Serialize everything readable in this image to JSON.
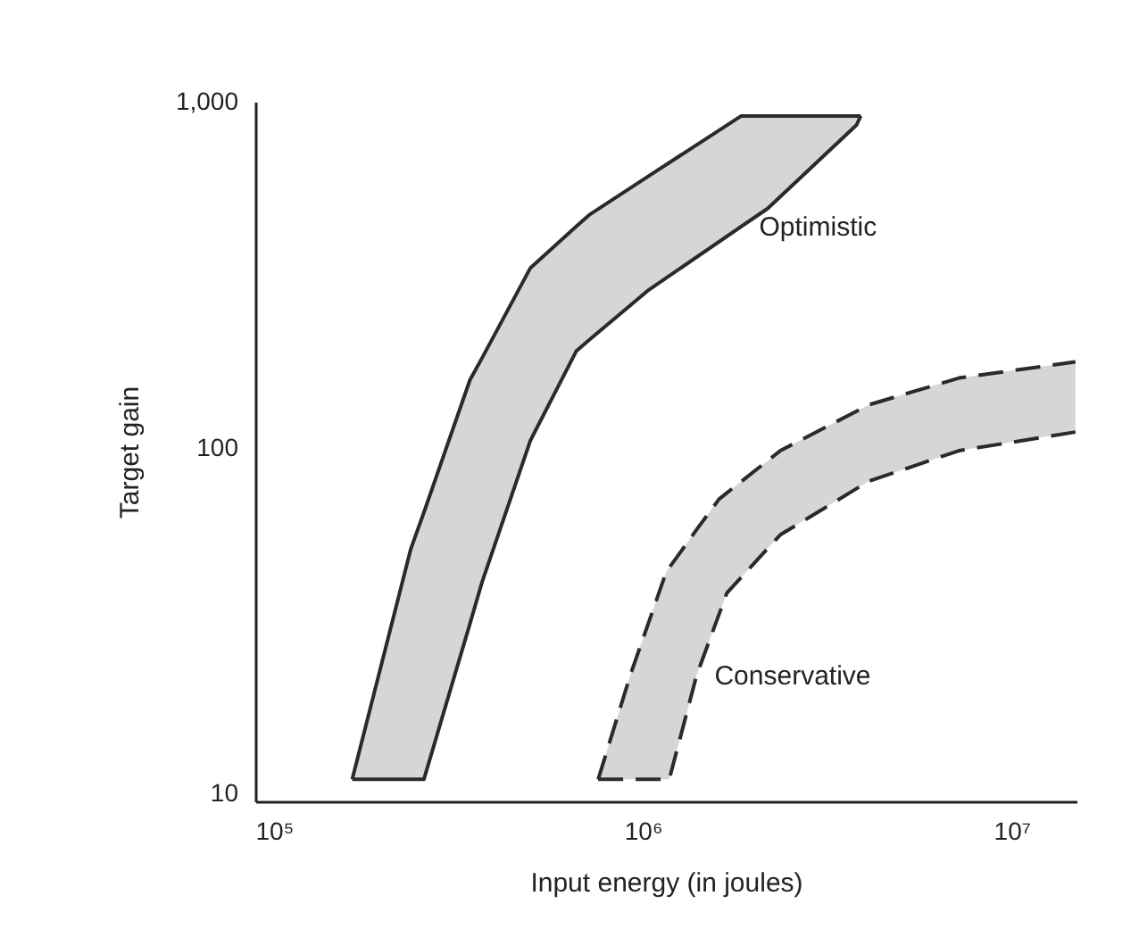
{
  "chart_data": {
    "type": "line",
    "xlabel": "Input energy (in joules)",
    "ylabel": "Target gain",
    "log": "xy",
    "xlim": [
      89000,
      15000000
    ],
    "xticks": [
      {
        "value": 100000,
        "label": "10⁵"
      },
      {
        "value": 1000000,
        "label": "10⁶"
      },
      {
        "value": 10000000,
        "label": "10⁷"
      }
    ],
    "ylim": [
      9.5,
      1000
    ],
    "yticks": [
      10,
      100,
      {
        "value": 1000,
        "label": "1,000"
      }
    ],
    "grid": false,
    "series": [
      {
        "color": "#2a2a2a",
        "line_style": "solid",
        "x": [
          163000,
          235000,
          255000,
          340000,
          367000,
          496000,
          660000,
          720000,
          1030000,
          1850000,
          2180000,
          3800000,
          3900000
        ],
        "values": [
          11,
          51,
          65,
          157,
          182,
          331,
          436,
          473,
          607,
          910,
          910,
          910,
          910
        ],
        "lower": [
          11,
          11,
          11,
          31,
          41,
          105,
          190,
          206,
          284,
          436,
          491,
          857,
          910
        ],
        "upper": [
          11,
          51,
          65,
          157,
          182,
          331,
          436,
          473,
          607,
          910,
          910,
          910,
          910
        ]
      },
      {
        "name": "Optimistic",
        "color": "#2a2a2a",
        "line_style": "solid",
        "x": [
          163000,
          235000,
          255000,
          340000,
          367000,
          496000,
          660000,
          720000,
          1030000,
          1850000,
          2180000,
          3800000,
          3900000
        ],
        "values": [
          11,
          11,
          11,
          31,
          41,
          105,
          190,
          206,
          284,
          436,
          491,
          857,
          910
        ]
      },
      {
        "color": "#2a2a2a",
        "line_style": "dashed",
        "x": [
          757000,
          925000,
          1160000,
          1180000,
          1400000,
          1610000,
          1690000,
          2360000,
          4100000,
          7200000,
          14900000
        ],
        "values": [
          11,
          22,
          44,
          45,
          58,
          71,
          74,
          98,
          133,
          159,
          177
        ],
        "lower": [
          11,
          11,
          11,
          11,
          22,
          33,
          38,
          56,
          80,
          98,
          111
        ],
        "upper": [
          11,
          22,
          44,
          45,
          58,
          71,
          74,
          98,
          133,
          159,
          177
        ]
      },
      {
        "name": "Conservative",
        "color": "#2a2a2a",
        "line_style": "dashed",
        "x": [
          757000,
          925000,
          1160000,
          1180000,
          1400000,
          1610000,
          1690000,
          2360000,
          4100000,
          7200000,
          14900000
        ],
        "values": [
          11,
          11,
          11,
          11,
          22,
          33,
          38,
          56,
          80,
          98,
          111
        ]
      }
    ]
  }
}
